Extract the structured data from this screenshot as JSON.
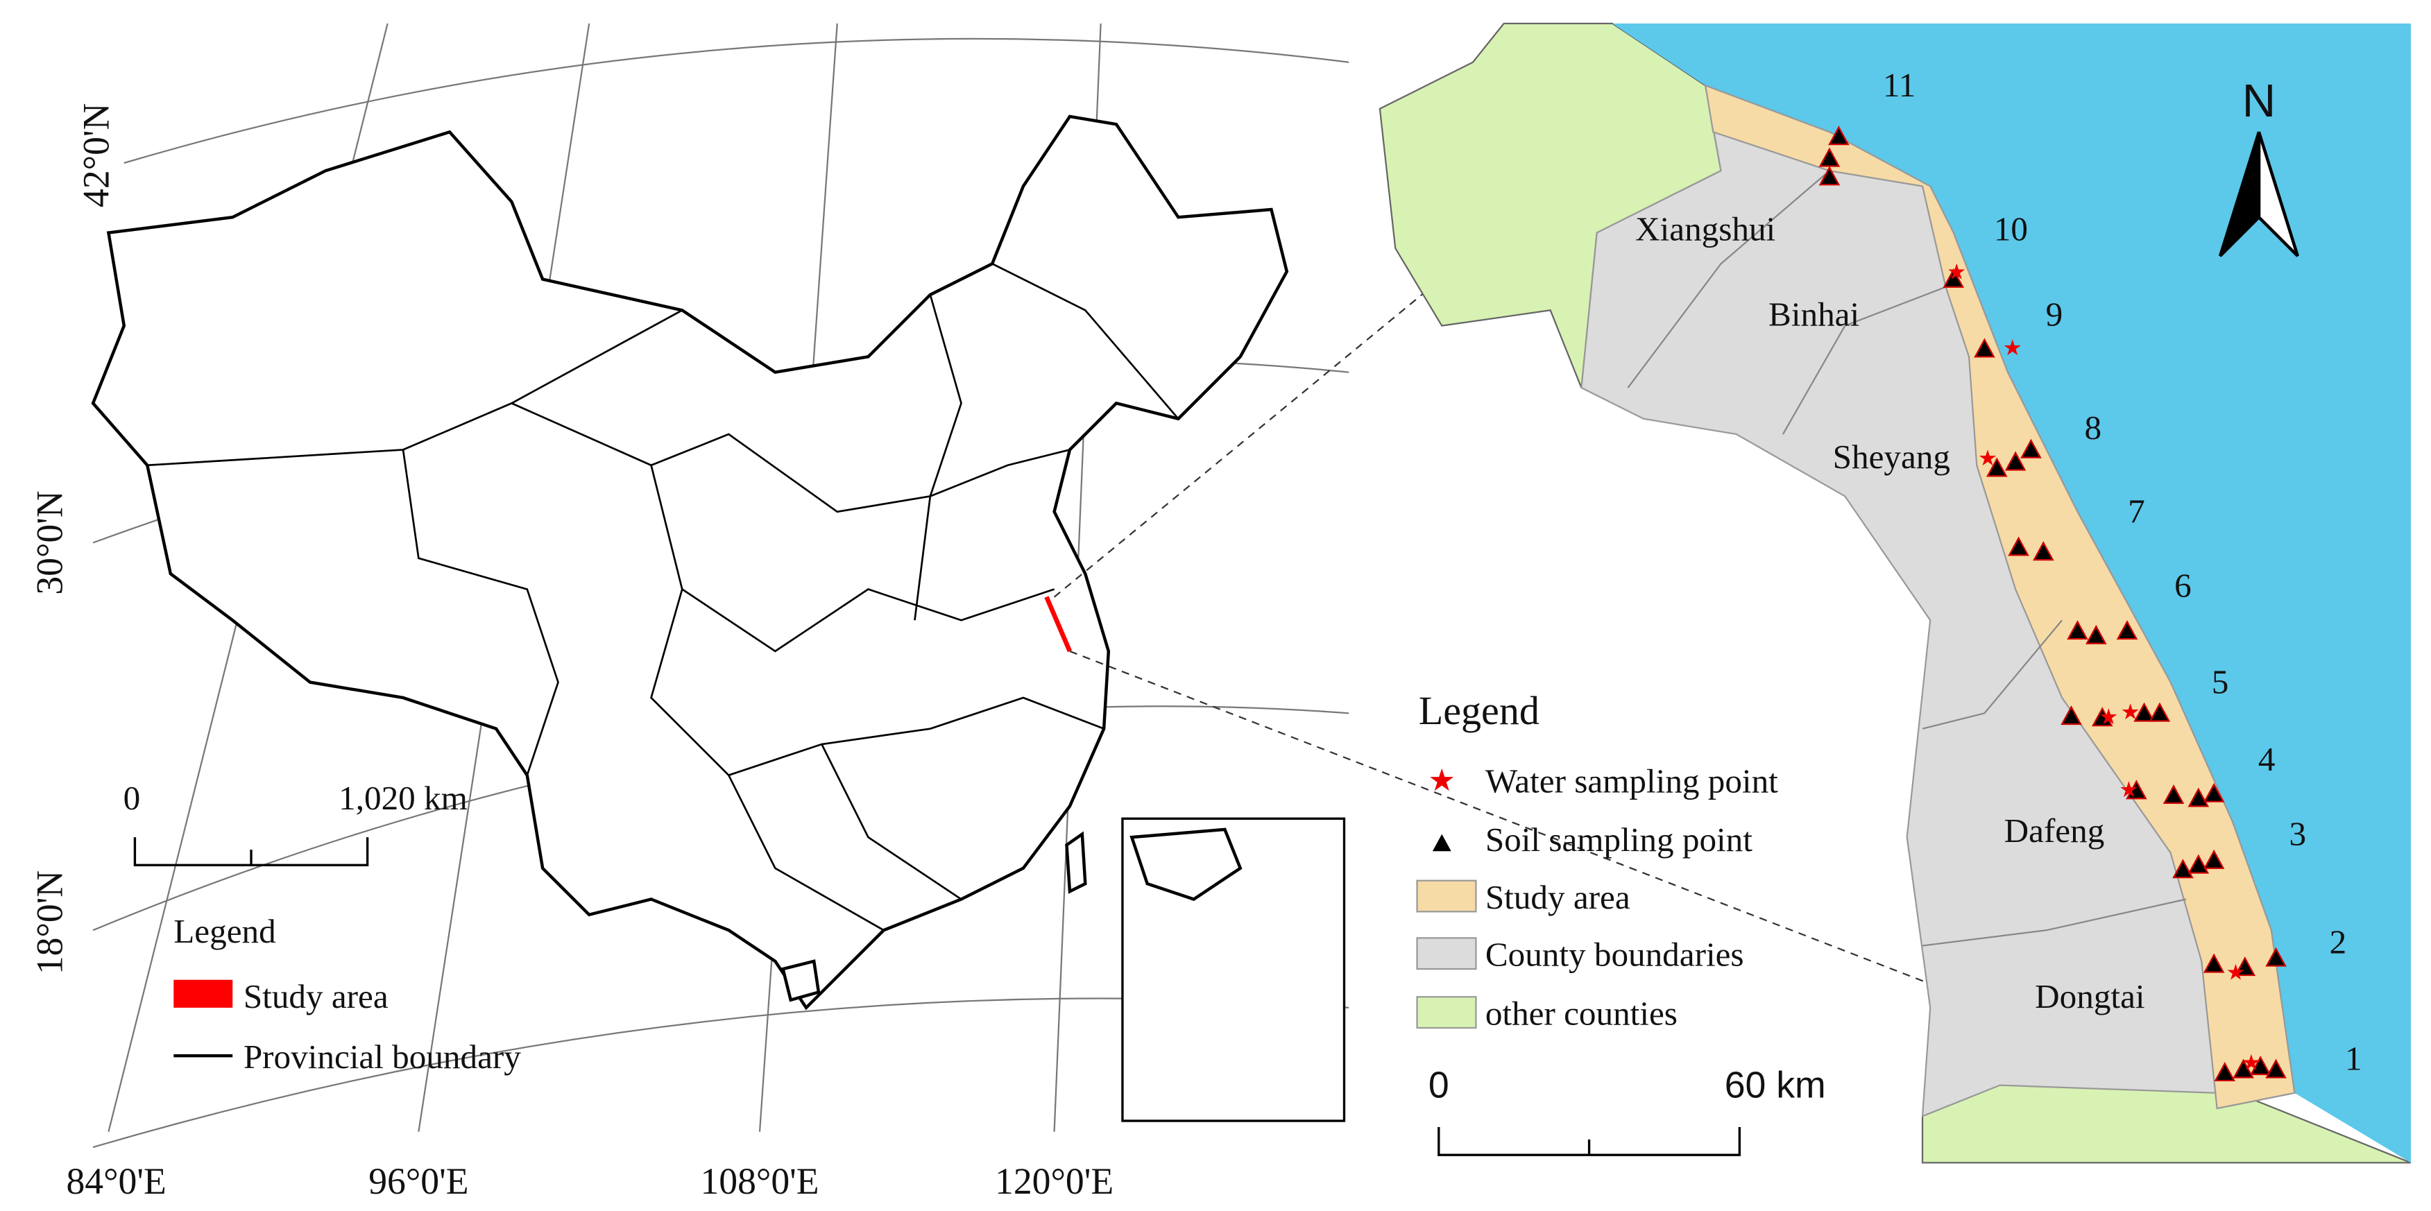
{
  "left_map": {
    "latitudes": [
      "42°0'N",
      "30°0'N",
      "18°0'N"
    ],
    "longitudes": [
      "84°0'E",
      "96°0'E",
      "108°0'E",
      "120°0'E"
    ],
    "scale": {
      "start": "0",
      "end": "1,020 km"
    },
    "legend": {
      "title": "Legend",
      "items": [
        "Study area",
        "Provincial boundary"
      ]
    }
  },
  "right_map": {
    "north": "N",
    "counties": [
      "Xiangshui",
      "Binhai",
      "Sheyang",
      "Dafeng",
      "Dongtai"
    ],
    "sections": [
      "1",
      "2",
      "3",
      "4",
      "5",
      "6",
      "7",
      "8",
      "9",
      "10",
      "11"
    ],
    "legend": {
      "title": "Legend",
      "items": [
        "Water sampling point",
        "Soil sampling point",
        "Study area",
        "County boundaries",
        "other counties"
      ]
    },
    "scale": {
      "start": "0",
      "end": "60 km"
    }
  }
}
